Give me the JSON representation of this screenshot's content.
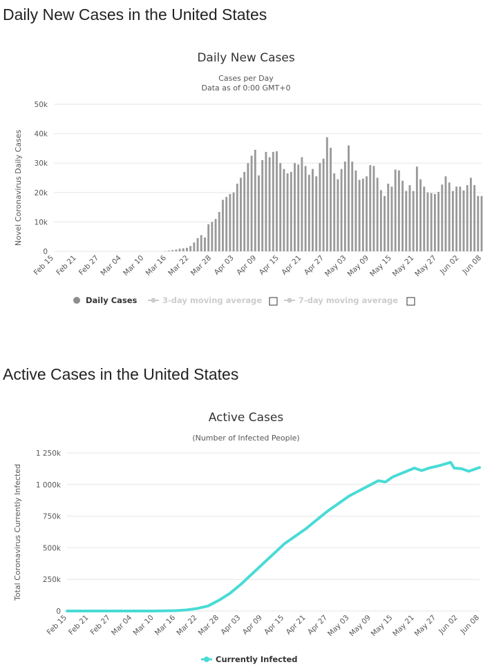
{
  "page": {
    "heading_daily": "Daily New Cases in the United States",
    "heading_active": "Active Cases in the United States"
  },
  "colors": {
    "daily_bar": "#999999",
    "active_line": "#48dbd6",
    "legend_inactive": "#cccccc"
  },
  "chart_data": [
    {
      "type": "bar",
      "title": "Daily New Cases",
      "subtitle_lines": [
        "Cases per Day",
        "Data as of 0:00 GMT+0"
      ],
      "ylabel": "Novel Coronavirus Daily Cases",
      "ylim": [
        0,
        50000
      ],
      "yticks": [
        0,
        10000,
        20000,
        30000,
        40000,
        50000
      ],
      "ytick_labels": [
        "0",
        "10k",
        "20k",
        "30k",
        "40k",
        "50k"
      ],
      "xtick_labels": [
        "Feb 15",
        "Feb 21",
        "Feb 27",
        "Mar 04",
        "Mar 10",
        "Mar 16",
        "Mar 22",
        "Mar 28",
        "Apr 03",
        "Apr 09",
        "Apr 15",
        "Apr 21",
        "Apr 27",
        "May 03",
        "May 09",
        "May 15",
        "May 21",
        "May 27",
        "Jun 02",
        "Jun 08"
      ],
      "x_start": "Feb 15",
      "x_end": "Jun 08",
      "grid": true,
      "legend_position": "bottom",
      "legend": [
        {
          "label": "Daily Cases",
          "active": true
        },
        {
          "label": "3-day moving average",
          "active": false
        },
        {
          "label": "7-day moving average",
          "active": false
        }
      ],
      "series": [
        {
          "name": "Daily Cases",
          "values": [
            0,
            0,
            0,
            0,
            0,
            0,
            0,
            0,
            0,
            0,
            0,
            0,
            0,
            0,
            0,
            0,
            0,
            0,
            0,
            0,
            0,
            0,
            0,
            0,
            0,
            0,
            0,
            0,
            0,
            0,
            0,
            100,
            200,
            400,
            600,
            900,
            1000,
            1200,
            1800,
            3000,
            4500,
            5500,
            4700,
            9200,
            10000,
            11000,
            13400,
            17500,
            18500,
            19500,
            20000,
            23000,
            25000,
            27000,
            30000,
            32500,
            34500,
            25800,
            31000,
            33800,
            32000,
            33800,
            34000,
            30000,
            28000,
            26500,
            27000,
            30000,
            29500,
            32000,
            29000,
            26000,
            28000,
            25500,
            30000,
            31500,
            38800,
            35200,
            26500,
            24500,
            28000,
            30500,
            36000,
            30500,
            27500,
            24300,
            24700,
            25500,
            29300,
            29000,
            25000,
            20800,
            18800,
            23000,
            22000,
            27800,
            27500,
            24000,
            20500,
            22500,
            20500,
            28800,
            24500,
            22000,
            20000,
            19800,
            19500,
            20200,
            22700,
            25500,
            23400,
            20500,
            22000,
            22000,
            20700,
            22500,
            25000,
            22500,
            18800,
            18800
          ]
        }
      ]
    },
    {
      "type": "line",
      "title": "Active Cases",
      "subtitle_lines": [
        "(Number of Infected People)"
      ],
      "ylabel": "Total Coronavirus Currently Infected",
      "ylim": [
        0,
        1250000
      ],
      "yticks": [
        0,
        250000,
        500000,
        750000,
        1000000,
        1250000
      ],
      "ytick_labels": [
        "0",
        "250k",
        "500k",
        "750k",
        "1 000k",
        "1 250k"
      ],
      "xtick_labels": [
        "Feb 15",
        "Feb 21",
        "Feb 27",
        "Mar 04",
        "Mar 10",
        "Mar 16",
        "Mar 22",
        "Mar 28",
        "Apr 03",
        "Apr 09",
        "Apr 15",
        "Apr 21",
        "Apr 27",
        "May 03",
        "May 09",
        "May 15",
        "May 21",
        "May 27",
        "Jun 02",
        "Jun 08"
      ],
      "x_start": "Feb 15",
      "x_end": "Jun 08",
      "grid": true,
      "legend_position": "bottom",
      "legend": [
        {
          "label": "Currently Infected",
          "active": true
        }
      ],
      "series": [
        {
          "name": "Currently Infected",
          "points": [
            {
              "x": "Feb 15",
              "y": 0
            },
            {
              "x": "Mar 10",
              "y": 0
            },
            {
              "x": "Mar 16",
              "y": 3000
            },
            {
              "x": "Mar 19",
              "y": 8000
            },
            {
              "x": "Mar 22",
              "y": 20000
            },
            {
              "x": "Mar 25",
              "y": 40000
            },
            {
              "x": "Mar 28",
              "y": 85000
            },
            {
              "x": "Mar 31",
              "y": 140000
            },
            {
              "x": "Apr 03",
              "y": 210000
            },
            {
              "x": "Apr 06",
              "y": 290000
            },
            {
              "x": "Apr 09",
              "y": 370000
            },
            {
              "x": "Apr 12",
              "y": 450000
            },
            {
              "x": "Apr 15",
              "y": 530000
            },
            {
              "x": "Apr 18",
              "y": 590000
            },
            {
              "x": "Apr 21",
              "y": 650000
            },
            {
              "x": "Apr 24",
              "y": 720000
            },
            {
              "x": "Apr 27",
              "y": 790000
            },
            {
              "x": "Apr 30",
              "y": 850000
            },
            {
              "x": "May 03",
              "y": 910000
            },
            {
              "x": "May 06",
              "y": 955000
            },
            {
              "x": "May 09",
              "y": 1000000
            },
            {
              "x": "May 11",
              "y": 1030000
            },
            {
              "x": "May 13",
              "y": 1020000
            },
            {
              "x": "May 15",
              "y": 1060000
            },
            {
              "x": "May 18",
              "y": 1095000
            },
            {
              "x": "May 21",
              "y": 1130000
            },
            {
              "x": "May 23",
              "y": 1110000
            },
            {
              "x": "May 25",
              "y": 1130000
            },
            {
              "x": "May 28",
              "y": 1150000
            },
            {
              "x": "May 31",
              "y": 1175000
            },
            {
              "x": "Jun 01",
              "y": 1130000
            },
            {
              "x": "Jun 03",
              "y": 1125000
            },
            {
              "x": "Jun 05",
              "y": 1105000
            },
            {
              "x": "Jun 08",
              "y": 1135000
            }
          ]
        }
      ]
    }
  ]
}
